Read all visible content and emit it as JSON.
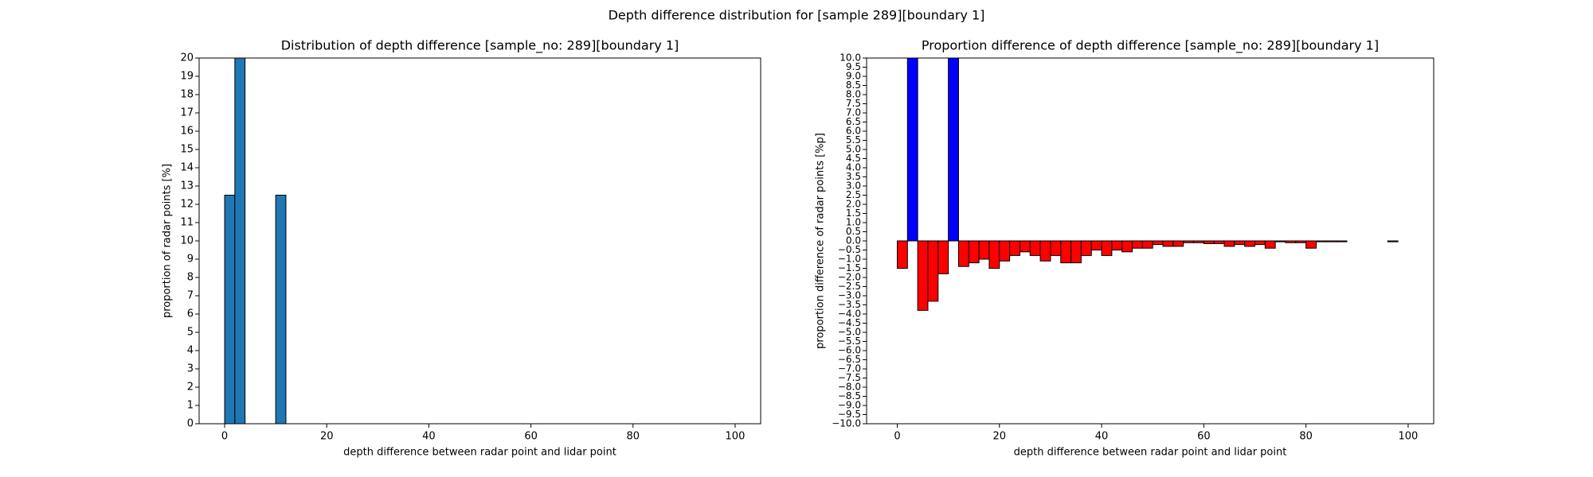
{
  "title": "Depth difference distribution for [sample 289][boundary 1]",
  "chart_data": [
    {
      "type": "histogram",
      "title": "Distribution of depth difference [sample_no: 289][boundary 1]",
      "xlabel": "depth difference between radar point and lidar point",
      "ylabel": "proportion of radar points [%]",
      "bins": [
        0,
        2,
        4,
        6,
        8,
        10,
        12,
        14,
        16,
        18,
        20,
        22,
        24,
        26,
        28,
        30,
        32,
        34,
        36,
        38,
        40,
        42,
        44,
        46,
        48,
        50,
        52,
        54,
        56,
        58,
        60,
        62,
        64,
        66,
        68,
        70,
        72,
        74,
        76,
        78,
        80,
        82,
        84,
        86,
        88,
        90,
        92,
        94,
        96,
        98,
        100
      ],
      "values": [
        12.5,
        20,
        0,
        0,
        0,
        12.5,
        0,
        0,
        0,
        0,
        0,
        0,
        0,
        0,
        0,
        0,
        0,
        0,
        0,
        0,
        0,
        0,
        0,
        0,
        0,
        0,
        0,
        0,
        0,
        0,
        0,
        0,
        0,
        0,
        0,
        0,
        0,
        0,
        0,
        0,
        0,
        0,
        0,
        0,
        0,
        0,
        0,
        0,
        0,
        0
      ],
      "color": "#1f77b4",
      "edgecolor": "#000000",
      "xlim": [
        -5,
        105
      ],
      "xticks": [
        0,
        20,
        40,
        60,
        80,
        100
      ],
      "ylim": [
        0,
        20
      ],
      "yticks": [
        0,
        1,
        2,
        3,
        4,
        5,
        6,
        7,
        8,
        9,
        10,
        11,
        12,
        13,
        14,
        15,
        16,
        17,
        18,
        19,
        20
      ]
    },
    {
      "type": "histogram",
      "title": "Proportion difference of depth difference [sample_no: 289][boundary 1]",
      "xlabel": "depth difference between radar point and lidar point",
      "ylabel": "proportion difference of radar points [%p]",
      "bins": [
        0,
        2,
        4,
        6,
        8,
        10,
        12,
        14,
        16,
        18,
        20,
        22,
        24,
        26,
        28,
        30,
        32,
        34,
        36,
        38,
        40,
        42,
        44,
        46,
        48,
        50,
        52,
        54,
        56,
        58,
        60,
        62,
        64,
        66,
        68,
        70,
        72,
        74,
        76,
        78,
        80,
        82,
        84,
        86,
        88,
        90,
        92,
        94,
        96,
        98,
        100
      ],
      "values": [
        -1.5,
        10,
        -3.8,
        -3.3,
        -1.8,
        10,
        -1.4,
        -1.2,
        -1.0,
        -1.5,
        -1.1,
        -0.8,
        -0.6,
        -0.8,
        -1.1,
        -0.8,
        -1.2,
        -1.2,
        -0.8,
        -0.5,
        -0.8,
        -0.5,
        -0.6,
        -0.4,
        -0.4,
        -0.2,
        -0.3,
        -0.3,
        -0.1,
        -0.1,
        -0.15,
        -0.15,
        -0.3,
        -0.2,
        -0.3,
        -0.2,
        -0.4,
        -0.05,
        -0.1,
        -0.1,
        -0.4,
        -0.05,
        -0.05,
        -0.05,
        0,
        0,
        0,
        0,
        -0.05,
        0
      ],
      "positive_color": "#0000ff",
      "negative_color": "#ff0000",
      "edgecolor": "#000000",
      "xlim": [
        -6,
        105
      ],
      "xticks": [
        0,
        20,
        40,
        60,
        80,
        100
      ],
      "ylim": [
        -10,
        10
      ],
      "yticks": [
        {
          "value": -10,
          "label": "−10.0"
        },
        {
          "value": -9.5,
          "label": "−9.5"
        },
        {
          "value": -9,
          "label": "−9.0"
        },
        {
          "value": -8.5,
          "label": "−8.5"
        },
        {
          "value": -8,
          "label": "−8.0"
        },
        {
          "value": -7.5,
          "label": "−7.5"
        },
        {
          "value": -7,
          "label": "−7.0"
        },
        {
          "value": -6.5,
          "label": "−6.5"
        },
        {
          "value": -6,
          "label": "−6.0"
        },
        {
          "value": -5.5,
          "label": "−5.5"
        },
        {
          "value": -5,
          "label": "−5.0"
        },
        {
          "value": -4.5,
          "label": "−4.5"
        },
        {
          "value": -4,
          "label": "−4.0"
        },
        {
          "value": -3.5,
          "label": "−3.5"
        },
        {
          "value": -3,
          "label": "−3.0"
        },
        {
          "value": -2.5,
          "label": "−2.5"
        },
        {
          "value": -2,
          "label": "−2.0"
        },
        {
          "value": -1.5,
          "label": "−1.5"
        },
        {
          "value": -1,
          "label": "−1.0"
        },
        {
          "value": -0.5,
          "label": "−0.5"
        },
        {
          "value": 0,
          "label": "0.0"
        },
        {
          "value": 0.5,
          "label": "0.5"
        },
        {
          "value": 1,
          "label": "1.0"
        },
        {
          "value": 1.5,
          "label": "1.5"
        },
        {
          "value": 2,
          "label": "2.0"
        },
        {
          "value": 2.5,
          "label": "2.5"
        },
        {
          "value": 3,
          "label": "3.0"
        },
        {
          "value": 3.5,
          "label": "3.5"
        },
        {
          "value": 4,
          "label": "4.0"
        },
        {
          "value": 4.5,
          "label": "4.5"
        },
        {
          "value": 5,
          "label": "5.0"
        },
        {
          "value": 5.5,
          "label": "5.5"
        },
        {
          "value": 6,
          "label": "6.0"
        },
        {
          "value": 6.5,
          "label": "6.5"
        },
        {
          "value": 7,
          "label": "7.0"
        },
        {
          "value": 7.5,
          "label": "7.5"
        },
        {
          "value": 8,
          "label": "8.0"
        },
        {
          "value": 8.5,
          "label": "8.5"
        },
        {
          "value": 9,
          "label": "9.0"
        },
        {
          "value": 9.5,
          "label": "9.5"
        },
        {
          "value": 10,
          "label": "10.0"
        }
      ]
    }
  ]
}
